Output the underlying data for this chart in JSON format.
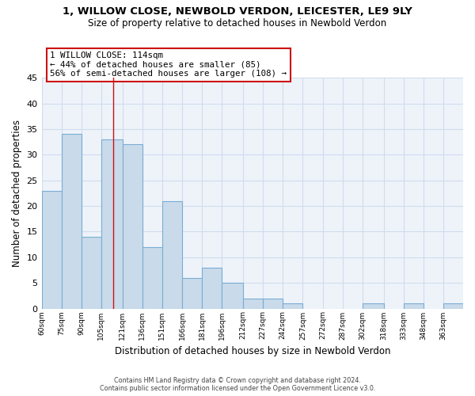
{
  "title": "1, WILLOW CLOSE, NEWBOLD VERDON, LEICESTER, LE9 9LY",
  "subtitle": "Size of property relative to detached houses in Newbold Verdon",
  "xlabel": "Distribution of detached houses by size in Newbold Verdon",
  "ylabel": "Number of detached properties",
  "bar_color": "#c9daea",
  "bar_edge_color": "#7aadd4",
  "grid_color": "#d0dced",
  "background_color": "#eef3fa",
  "annotation_box_color": "#cc1111",
  "annotation_line_color": "#cc1111",
  "bins": [
    60,
    75,
    90,
    105,
    121,
    136,
    151,
    166,
    181,
    196,
    212,
    227,
    242,
    257,
    272,
    287,
    302,
    318,
    333,
    348,
    363
  ],
  "bin_widths": [
    15,
    15,
    15,
    16,
    15,
    15,
    15,
    15,
    15,
    16,
    15,
    15,
    15,
    15,
    15,
    15,
    16,
    15,
    15,
    15,
    15
  ],
  "values": [
    23,
    34,
    14,
    33,
    32,
    12,
    21,
    6,
    8,
    5,
    2,
    2,
    1,
    0,
    0,
    0,
    1,
    0,
    1,
    0,
    1
  ],
  "property_size": 114,
  "annotation_title": "1 WILLOW CLOSE: 114sqm",
  "annotation_line1": "← 44% of detached houses are smaller (85)",
  "annotation_line2": "56% of semi-detached houses are larger (108) →",
  "ylim": [
    0,
    45
  ],
  "xlim_left": 60,
  "xlim_right": 378,
  "footer_line1": "Contains HM Land Registry data © Crown copyright and database right 2024.",
  "footer_line2": "Contains public sector information licensed under the Open Government Licence v3.0.",
  "tick_labels": [
    "60sqm",
    "75sqm",
    "90sqm",
    "105sqm",
    "121sqm",
    "136sqm",
    "151sqm",
    "166sqm",
    "181sqm",
    "196sqm",
    "212sqm",
    "227sqm",
    "242sqm",
    "257sqm",
    "272sqm",
    "287sqm",
    "302sqm",
    "318sqm",
    "333sqm",
    "348sqm",
    "363sqm"
  ]
}
